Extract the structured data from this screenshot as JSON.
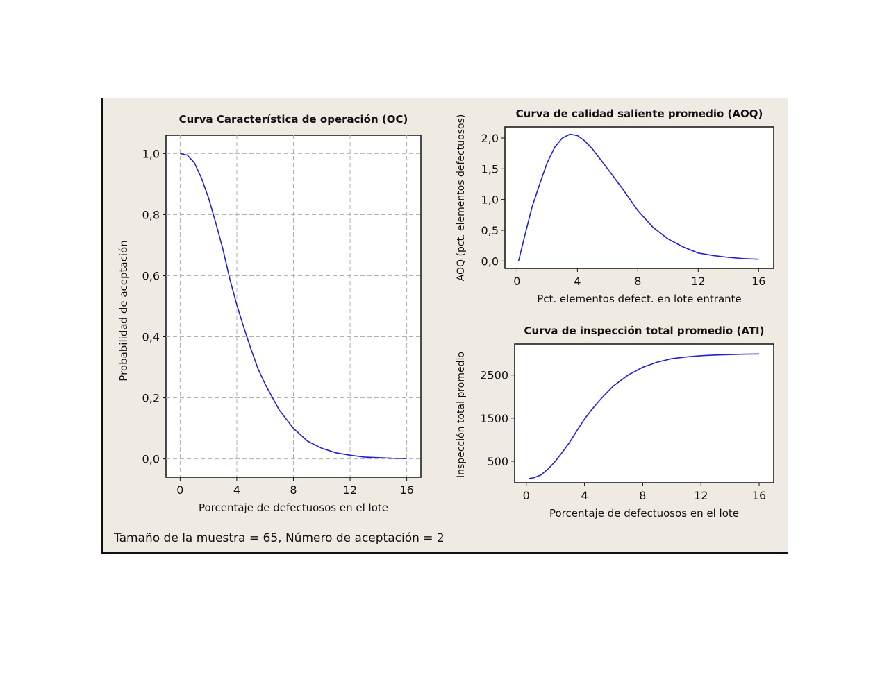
{
  "footer": "Tamaño de la muestra = 65, Número de aceptación = 2",
  "colors": {
    "background": "#efebe2",
    "curve": "#1f1fd6",
    "grid": "#b0b0b0"
  },
  "chart_data": [
    {
      "type": "line",
      "title": "Curva Característica de operación (OC)",
      "xlabel": "Porcentaje de defectuosos en el lote",
      "ylabel": "Probabilidad de aceptación",
      "xlim": [
        -1.0,
        17.0
      ],
      "ylim": [
        -0.06,
        1.06
      ],
      "xticks": [
        0,
        4,
        8,
        12,
        16
      ],
      "yticks": [
        0.0,
        0.2,
        0.4,
        0.6,
        0.8,
        1.0
      ],
      "xtick_labels": [
        "0",
        "4",
        "8",
        "12",
        "16"
      ],
      "ytick_labels": [
        "0,0",
        "0,2",
        "0,4",
        "0,6",
        "0,8",
        "1,0"
      ],
      "grid": true,
      "series": [
        {
          "x": [
            0,
            0.5,
            1,
            1.5,
            2,
            2.5,
            3,
            3.5,
            4,
            4.5,
            5,
            5.5,
            6,
            7,
            8,
            9,
            10,
            11,
            12,
            13,
            14,
            15,
            16
          ],
          "y": [
            1.0,
            0.995,
            0.97,
            0.92,
            0.855,
            0.775,
            0.69,
            0.59,
            0.505,
            0.43,
            0.36,
            0.295,
            0.245,
            0.16,
            0.1,
            0.058,
            0.035,
            0.02,
            0.012,
            0.006,
            0.004,
            0.002,
            0.001
          ]
        }
      ]
    },
    {
      "type": "line",
      "title": "Curva de calidad saliente promedio (AOQ)",
      "xlabel": "Pct. elementos defect. en lote entrante",
      "ylabel": "AOQ (pct. elementos defectuosos)",
      "xlim": [
        -0.8,
        17.0
      ],
      "ylim": [
        -0.12,
        2.18
      ],
      "xticks": [
        0,
        4,
        8,
        12,
        16
      ],
      "yticks": [
        0.0,
        0.5,
        1.0,
        1.5,
        2.0
      ],
      "xtick_labels": [
        "0",
        "4",
        "8",
        "12",
        "16"
      ],
      "ytick_labels": [
        "0,0",
        "0,5",
        "1,0",
        "1,5",
        "2,0"
      ],
      "grid": false,
      "series": [
        {
          "x": [
            0.1,
            0.5,
            1,
            1.5,
            2,
            2.5,
            3,
            3.5,
            4,
            4.5,
            5,
            5.5,
            6,
            7,
            8,
            9,
            10,
            11,
            12,
            13,
            14,
            15,
            16
          ],
          "y": [
            0.0,
            0.4,
            0.88,
            1.25,
            1.6,
            1.85,
            2.0,
            2.06,
            2.04,
            1.95,
            1.82,
            1.66,
            1.5,
            1.17,
            0.82,
            0.55,
            0.36,
            0.23,
            0.13,
            0.09,
            0.06,
            0.04,
            0.03
          ]
        }
      ]
    },
    {
      "type": "line",
      "title": "Curva de inspección total promedio (ATI)",
      "xlabel": "Porcentaje de defectuosos en el lote",
      "ylabel": "Inspección total promedio",
      "xlim": [
        -0.8,
        17.0
      ],
      "ylim": [
        0,
        3220
      ],
      "xticks": [
        0,
        4,
        8,
        12,
        16
      ],
      "yticks": [
        500,
        1500,
        2500
      ],
      "xtick_labels": [
        "0",
        "4",
        "8",
        "12",
        "16"
      ],
      "ytick_labels": [
        "500",
        "1500",
        "2500"
      ],
      "grid": false,
      "series": [
        {
          "x": [
            0.2,
            0.5,
            1,
            1.5,
            2,
            2.5,
            3,
            3.5,
            4,
            4.5,
            5,
            5.5,
            6,
            7,
            8,
            9,
            10,
            11,
            12,
            13,
            14,
            15,
            16
          ],
          "y": [
            100,
            115,
            180,
            320,
            500,
            720,
            950,
            1220,
            1480,
            1700,
            1900,
            2080,
            2250,
            2500,
            2680,
            2800,
            2880,
            2920,
            2950,
            2965,
            2975,
            2985,
            2990
          ]
        }
      ]
    }
  ]
}
